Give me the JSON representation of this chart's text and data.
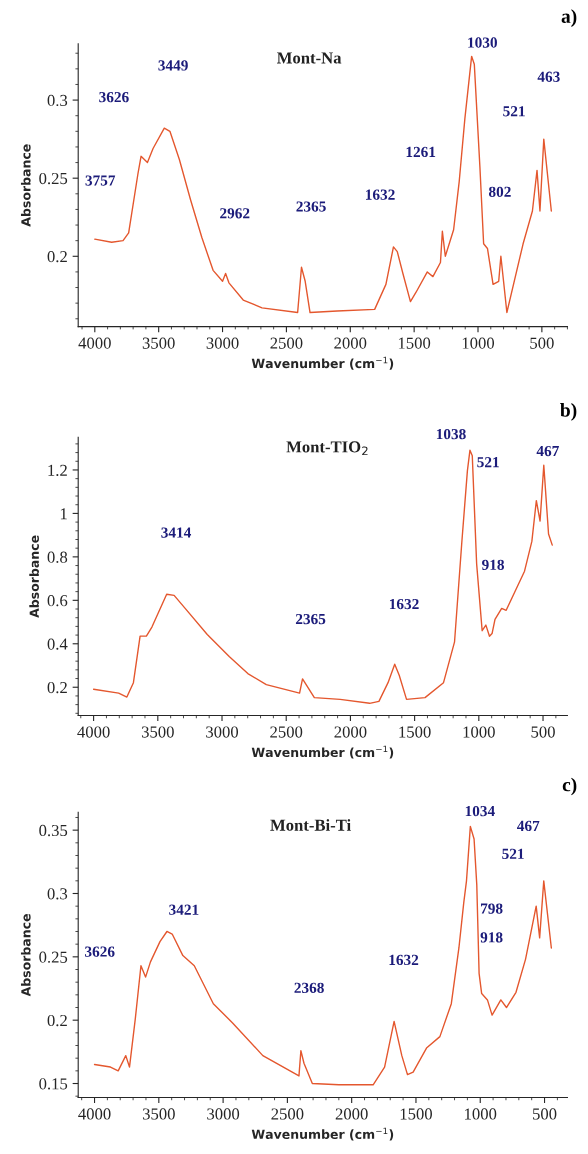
{
  "chart_data": [
    {
      "type": "line",
      "title": "Mont-Na",
      "xlabel": "Wavenumber (cm$^{−1}$)",
      "ylabel": "Absorbance",
      "xlim": [
        4130,
        300
      ],
      "ylim": [
        0.155,
        0.336
      ],
      "xticks": [
        4000,
        3500,
        3000,
        2500,
        2000,
        1500,
        1000,
        500
      ],
      "yticks": [
        0.2,
        0.25,
        0.3
      ],
      "grid": false,
      "legend": false,
      "series": [
        {
          "color": "#e4572e",
          "x": [
            4000,
            3868,
            3779,
            3735,
            3662,
            3638,
            3588,
            3544,
            3456,
            3412,
            3338,
            3250,
            3162,
            3074,
            3000,
            2976,
            2950,
            2838,
            2691,
            2412,
            2382,
            2353,
            2315,
            2103,
            1809,
            1721,
            1662,
            1632,
            1588,
            1529,
            1485,
            1397,
            1353,
            1294,
            1279,
            1256,
            1191,
            1147,
            1103,
            1050,
            1029,
            985,
            956,
            926,
            882,
            838,
            821,
            800,
            774,
            647,
            574,
            538,
            515,
            485,
            426
          ],
          "values": [
            0.211,
            0.209,
            0.21,
            0.215,
            0.253,
            0.264,
            0.26,
            0.269,
            0.282,
            0.28,
            0.262,
            0.236,
            0.212,
            0.191,
            0.184,
            0.189,
            0.183,
            0.172,
            0.167,
            0.164,
            0.193,
            0.184,
            0.164,
            0.165,
            0.166,
            0.182,
            0.206,
            0.203,
            0.189,
            0.171,
            0.177,
            0.19,
            0.187,
            0.196,
            0.216,
            0.2,
            0.217,
            0.248,
            0.288,
            0.328,
            0.323,
            0.257,
            0.208,
            0.205,
            0.182,
            0.184,
            0.2,
            0.184,
            0.164,
            0.208,
            0.229,
            0.255,
            0.229,
            0.275,
            0.229
          ]
        }
      ],
      "annotations": [
        "a)",
        "3757",
        "3626",
        "3449",
        "2962",
        "2365",
        "1632",
        "1261",
        "1030",
        "802",
        "521",
        "463"
      ]
    },
    {
      "type": "line",
      "title": "Mont-TIO$_{2}$",
      "xlabel": "Wavenumber (cm$^{−1}$)",
      "ylabel": "Absorbance",
      "xlim": [
        4120,
        310
      ],
      "ylim": [
        0.07,
        1.35
      ],
      "xticks": [
        4000,
        3500,
        3000,
        2500,
        2000,
        1500,
        1000,
        500
      ],
      "yticks": [
        0.2,
        0.4,
        0.6,
        0.8,
        1,
        1.2
      ],
      "grid": false,
      "legend": false,
      "series": [
        {
          "color": "#e4572e",
          "x": [
            4000,
            3805,
            3741,
            3690,
            3638,
            3589,
            3546,
            3431,
            3373,
            3287,
            3115,
            2942,
            2799,
            2655,
            2396,
            2373,
            2281,
            2080,
            1850,
            1778,
            1707,
            1655,
            1620,
            1563,
            1419,
            1275,
            1189,
            1132,
            1089,
            1069,
            1051,
            1017,
            974,
            945,
            917,
            897,
            874,
            822,
            787,
            644,
            587,
            552,
            523,
            494,
            457,
            428
          ],
          "values": [
            0.191,
            0.173,
            0.155,
            0.221,
            0.435,
            0.435,
            0.477,
            0.628,
            0.623,
            0.563,
            0.443,
            0.34,
            0.263,
            0.212,
            0.173,
            0.238,
            0.152,
            0.144,
            0.126,
            0.135,
            0.221,
            0.306,
            0.255,
            0.144,
            0.152,
            0.221,
            0.409,
            0.871,
            1.196,
            1.291,
            1.265,
            0.768,
            0.46,
            0.486,
            0.435,
            0.447,
            0.512,
            0.563,
            0.554,
            0.734,
            0.871,
            1.059,
            0.965,
            1.222,
            0.905,
            0.854
          ]
        }
      ],
      "annotations": [
        "b)",
        "1038",
        "521",
        "467",
        "3414",
        "918",
        "2365",
        "1632"
      ]
    },
    {
      "type": "line",
      "title": "Mont-Bi-Ti",
      "xlabel": "Wavenumber (cm$^{−1}$)",
      "ylabel": "Absorbance",
      "xlim": [
        4127,
        322
      ],
      "ylim": [
        0.139,
        0.364
      ],
      "xticks": [
        4000,
        3500,
        3000,
        2500,
        2000,
        1500,
        1000,
        500
      ],
      "yticks": [
        0.15,
        0.2,
        0.25,
        0.3,
        0.35
      ],
      "grid": false,
      "legend": false,
      "series": [
        {
          "color": "#e4572e",
          "x": [
            4000,
            3876,
            3816,
            3757,
            3728,
            3683,
            3639,
            3603,
            3565,
            3491,
            3437,
            3396,
            3313,
            3224,
            3076,
            2928,
            2691,
            2410,
            2395,
            2371,
            2306,
            2099,
            1833,
            1744,
            1670,
            1610,
            1566,
            1522,
            1418,
            1314,
            1225,
            1166,
            1128,
            1107,
            1077,
            1048,
            1027,
            1009,
            989,
            944,
            908,
            840,
            796,
            722,
            648,
            565,
            538,
            506,
            447
          ],
          "values": [
            0.165,
            0.163,
            0.16,
            0.172,
            0.163,
            0.201,
            0.243,
            0.234,
            0.246,
            0.262,
            0.27,
            0.268,
            0.251,
            0.243,
            0.213,
            0.198,
            0.172,
            0.156,
            0.176,
            0.166,
            0.15,
            0.149,
            0.149,
            0.163,
            0.199,
            0.172,
            0.157,
            0.159,
            0.178,
            0.187,
            0.213,
            0.257,
            0.293,
            0.31,
            0.353,
            0.343,
            0.307,
            0.237,
            0.221,
            0.216,
            0.204,
            0.216,
            0.21,
            0.222,
            0.248,
            0.29,
            0.265,
            0.31,
            0.257
          ]
        }
      ],
      "annotations": [
        "c)",
        "3626",
        "3421",
        "2368",
        "1632",
        "1034",
        "467",
        "521",
        "798",
        "918"
      ]
    }
  ]
}
